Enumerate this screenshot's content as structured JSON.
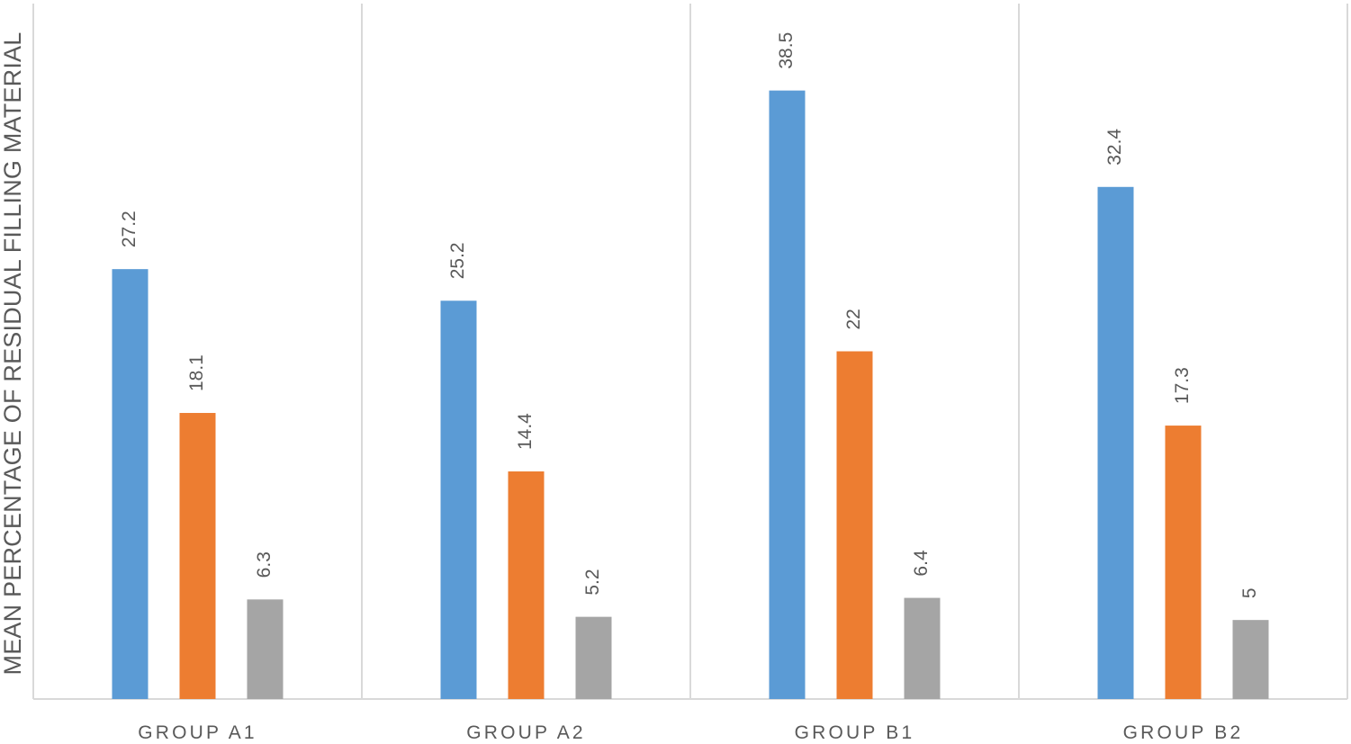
{
  "chart_data": {
    "type": "bar",
    "title": "",
    "xlabel": "",
    "ylabel": "MEAN PERCENTAGE OF RESIDUAL FILLING MATERIAL",
    "categories": [
      "GROUP A1",
      "GROUP A2",
      "GROUP B1",
      "GROUP B2"
    ],
    "series": [
      {
        "color": "#5b9bd5",
        "values": [
          27.2,
          25.2,
          38.5,
          32.4
        ]
      },
      {
        "color": "#ed7d31",
        "values": [
          18.1,
          14.4,
          22,
          17.3
        ]
      },
      {
        "color": "#a5a5a5",
        "values": [
          6.3,
          5.2,
          6.4,
          5
        ]
      }
    ],
    "value_labels": [
      [
        "27.2",
        "25.2",
        "38.5",
        "32.4"
      ],
      [
        "18.1",
        "14.4",
        "22",
        "17.3"
      ],
      [
        "6.3",
        "5.2",
        "6.4",
        "5"
      ]
    ],
    "ylim": [
      0,
      44
    ],
    "grid": "vertical category separators",
    "legend": "none",
    "data_label_orientation": "vertical"
  }
}
